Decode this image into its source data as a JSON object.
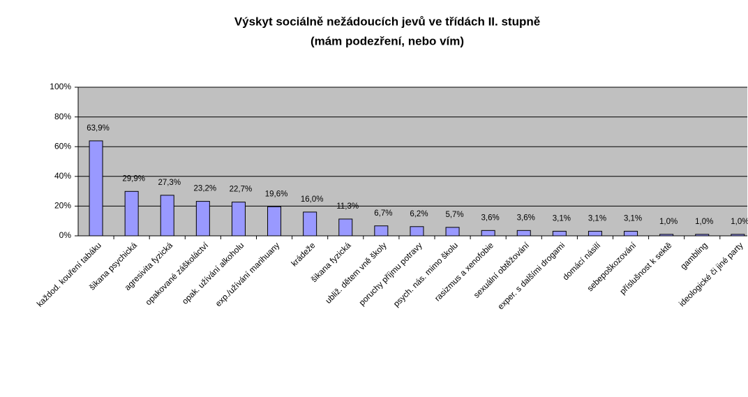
{
  "chart_data": {
    "type": "bar",
    "title": "Výskyt sociálně nežádoucích jevů ve třídách II. stupně",
    "subtitle": "(mám podezření, nebo vím)",
    "categories": [
      "každod. kouření tabáku",
      "šikana psychická",
      "agresivita fyzická",
      "opakované záškoláctví",
      "opak. užívání alkoholu",
      "exp./užívání marihuany",
      "krádeže",
      "šikana fyzická",
      "ubliž. dětem vně školy",
      "poruchy příjmu potravy",
      "psych. nás. mimo školu",
      "rasizmus a xenofobie",
      "sexuální obtěžování",
      "exper. s dalšími drogami",
      "domácí násilí",
      "sebepoškozování",
      "příslušnost k sektě",
      "gambling",
      "ideologické či jiné party"
    ],
    "values": [
      63.9,
      29.9,
      27.3,
      23.2,
      22.7,
      19.6,
      16.0,
      11.3,
      6.7,
      6.2,
      5.7,
      3.6,
      3.6,
      3.1,
      3.1,
      3.1,
      1.0,
      1.0,
      1.0
    ],
    "value_labels": [
      "63,9%",
      "29,9%",
      "27,3%",
      "23,2%",
      "22,7%",
      "19,6%",
      "16,0%",
      "11,3%",
      "6,7%",
      "6,2%",
      "5,7%",
      "3,6%",
      "3,6%",
      "3,1%",
      "3,1%",
      "3,1%",
      "1,0%",
      "1,0%",
      "1,0%"
    ],
    "color": "#9999ff",
    "ylim": [
      0,
      100
    ],
    "yticks": [
      {
        "value": 0,
        "label": "0%"
      },
      {
        "value": 20,
        "label": "20%"
      },
      {
        "value": 40,
        "label": "40%"
      },
      {
        "value": 60,
        "label": "60%"
      },
      {
        "value": 80,
        "label": "80%"
      },
      {
        "value": 100,
        "label": "100%"
      }
    ],
    "grid": true
  }
}
